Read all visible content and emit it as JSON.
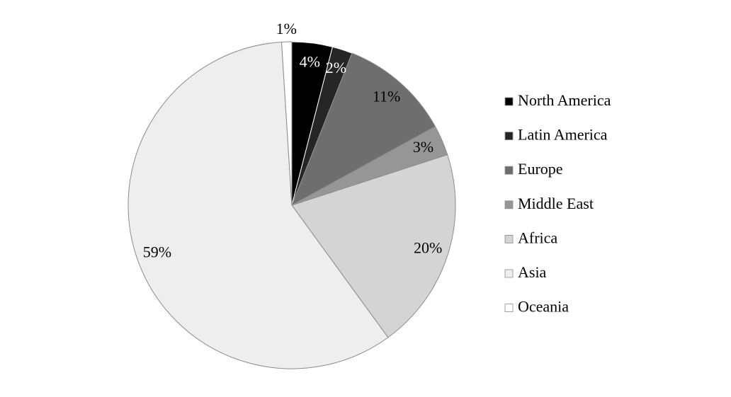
{
  "chart_data": {
    "type": "pie",
    "categories": [
      "North America",
      "Latin America",
      "Europe",
      "Middle East",
      "Africa",
      "Asia",
      "Oceania"
    ],
    "values": [
      4,
      2,
      11,
      3,
      20,
      59,
      1
    ],
    "value_labels": [
      "4%",
      "2%",
      "11%",
      "3%",
      "20%",
      "59%",
      "1%"
    ],
    "colors": [
      "#000000",
      "#262626",
      "#6e6e6e",
      "#969696",
      "#d4d4d4",
      "#eeeeee",
      "#ffffff"
    ],
    "legend": "right"
  }
}
